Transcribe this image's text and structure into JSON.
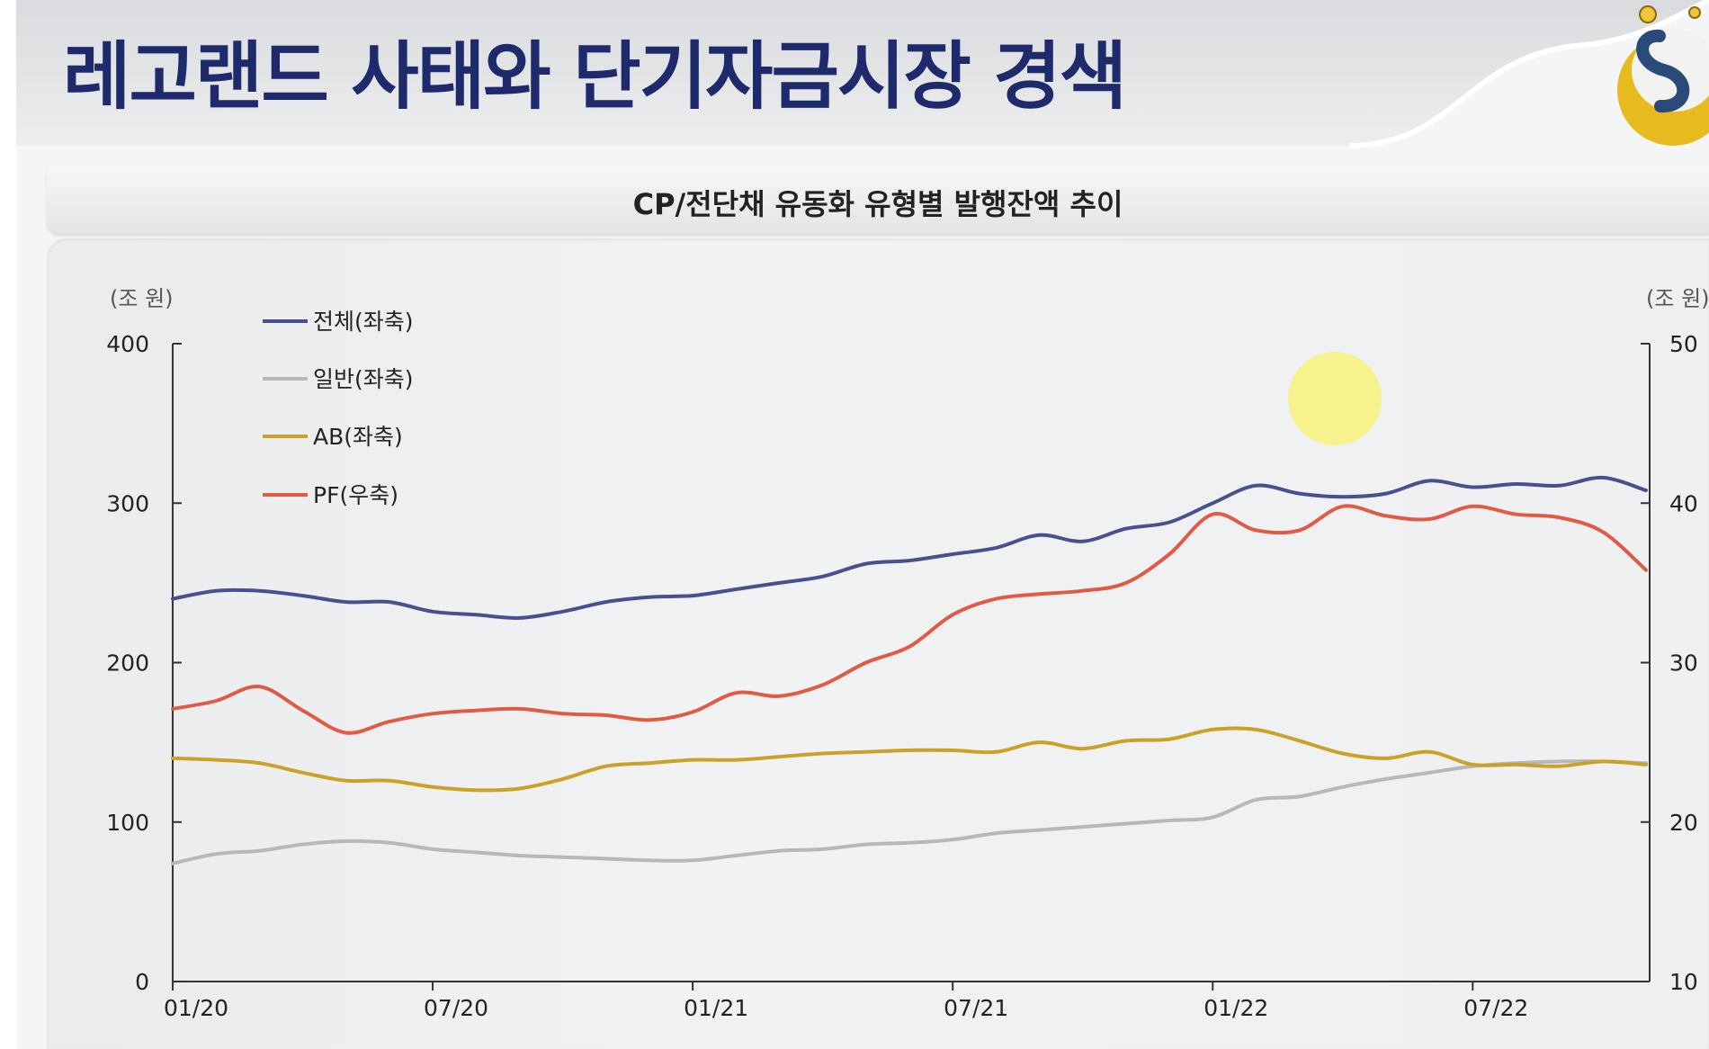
{
  "page": {
    "title": "레고랜드 사태와 단기자금시장 경색"
  },
  "chart_data": {
    "type": "line",
    "title": "CP/전단채 유동화 유형별 발행잔액 추이",
    "y_left_unit": "(조 원)",
    "y_right_unit": "(조 원)",
    "y_left_ticks": [
      "0",
      "100",
      "200",
      "300",
      "400"
    ],
    "y_right_ticks": [
      "10",
      "20",
      "30",
      "40",
      "50"
    ],
    "ylim_left": [
      0,
      400
    ],
    "ylim_right": [
      10,
      50
    ],
    "x_ticks": [
      "01/20",
      "07/20",
      "01/21",
      "07/21",
      "01/22",
      "07/22"
    ],
    "x_tick_positions": [
      0,
      6,
      12,
      18,
      24,
      30
    ],
    "x_range": [
      0,
      34
    ],
    "grid": false,
    "legend_position": "top-left",
    "series": [
      {
        "name": "전체(좌축)",
        "axis": "left",
        "color": "#4a4f8f",
        "x": [
          0,
          1,
          2,
          3,
          4,
          5,
          6,
          7,
          8,
          9,
          10,
          11,
          12,
          13,
          14,
          15,
          16,
          17,
          18,
          19,
          20,
          21,
          22,
          23,
          24,
          25,
          26,
          27,
          28,
          29,
          30,
          31,
          32,
          33,
          34
        ],
        "values": [
          240,
          245,
          245,
          242,
          238,
          238,
          232,
          230,
          228,
          232,
          238,
          241,
          242,
          246,
          250,
          254,
          262,
          264,
          268,
          272,
          280,
          276,
          284,
          288,
          300,
          311,
          306,
          304,
          306,
          314,
          310,
          312,
          311,
          316,
          308
        ]
      },
      {
        "name": "일반(좌축)",
        "axis": "left",
        "color": "#b8b8b8",
        "x": [
          0,
          1,
          2,
          3,
          4,
          5,
          6,
          7,
          8,
          9,
          10,
          11,
          12,
          13,
          14,
          15,
          16,
          17,
          18,
          19,
          20,
          21,
          22,
          23,
          24,
          25,
          26,
          27,
          28,
          29,
          30,
          31,
          32,
          33,
          34
        ],
        "values": [
          74,
          80,
          82,
          86,
          88,
          87,
          83,
          81,
          79,
          78,
          77,
          76,
          76,
          79,
          82,
          83,
          86,
          87,
          89,
          93,
          95,
          97,
          99,
          101,
          103,
          114,
          116,
          122,
          127,
          131,
          135,
          137,
          138,
          138,
          137
        ]
      },
      {
        "name": "AB(좌축)",
        "axis": "left",
        "color": "#c9a227",
        "x": [
          0,
          1,
          2,
          3,
          4,
          5,
          6,
          7,
          8,
          9,
          10,
          11,
          12,
          13,
          14,
          15,
          16,
          17,
          18,
          19,
          20,
          21,
          22,
          23,
          24,
          25,
          26,
          27,
          28,
          29,
          30,
          31,
          32,
          33,
          34
        ],
        "values": [
          140,
          139,
          137,
          131,
          126,
          126,
          122,
          120,
          121,
          127,
          135,
          137,
          139,
          139,
          141,
          143,
          144,
          145,
          145,
          144,
          150,
          146,
          151,
          152,
          158,
          158,
          151,
          143,
          140,
          144,
          136,
          136,
          135,
          138,
          136
        ]
      },
      {
        "name": "PF(우축)",
        "axis": "right",
        "color": "#e05a44",
        "x": [
          0,
          1,
          2,
          3,
          4,
          5,
          6,
          7,
          8,
          9,
          10,
          11,
          12,
          13,
          14,
          15,
          16,
          17,
          18,
          19,
          20,
          21,
          22,
          23,
          24,
          25,
          26,
          27,
          28,
          29,
          30,
          31,
          32,
          33,
          34
        ],
        "values": [
          27.1,
          27.6,
          28.5,
          27.0,
          25.6,
          26.3,
          26.8,
          27.0,
          27.1,
          26.8,
          26.7,
          26.4,
          26.9,
          28.1,
          27.9,
          28.6,
          30.0,
          31.0,
          33.0,
          34.0,
          34.3,
          34.5,
          35.0,
          36.8,
          39.3,
          38.3,
          38.3,
          39.8,
          39.2,
          39.0,
          39.8,
          39.3,
          39.1,
          38.2,
          35.8
        ]
      }
    ]
  }
}
